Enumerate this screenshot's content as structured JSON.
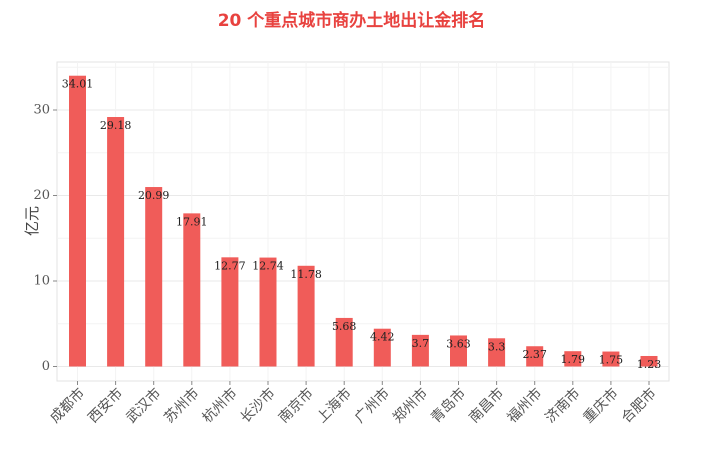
{
  "chart_data": {
    "type": "bar",
    "title": "20 个重点城市商办土地出让金排名",
    "xlabel": "",
    "ylabel": "亿元",
    "categories": [
      "成都市",
      "西安市",
      "武汉市",
      "苏州市",
      "杭州市",
      "长沙市",
      "南京市",
      "上海市",
      "广州市",
      "郑州市",
      "青岛市",
      "南昌市",
      "福州市",
      "济南市",
      "重庆市",
      "合肥市"
    ],
    "values": [
      34.01,
      29.18,
      20.99,
      17.91,
      12.77,
      12.74,
      11.78,
      5.68,
      4.42,
      3.7,
      3.63,
      3.3,
      2.37,
      1.79,
      1.75,
      1.23
    ],
    "value_labels": [
      "34.01",
      "29.18",
      "20.99",
      "17.91",
      "12.77",
      "12.74",
      "11.78",
      "5.68",
      "4.42",
      "3.7",
      "3.63",
      "3.3",
      "2.37",
      "1.79",
      "1.75",
      "1.23"
    ],
    "ylim": [
      0,
      35.5
    ],
    "yticks": [
      0,
      10,
      20,
      30
    ],
    "ytick_labels": [
      "0",
      "10",
      "20",
      "30"
    ],
    "grid": true,
    "bar_color": "#f05c59",
    "title_color": "#e8423f"
  }
}
